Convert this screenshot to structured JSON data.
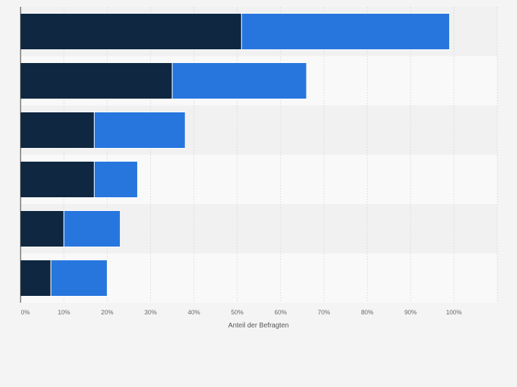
{
  "chart_data": {
    "type": "bar",
    "orientation": "horizontal",
    "stacked": true,
    "categories": [
      "",
      "",
      "",
      "",
      "",
      ""
    ],
    "series": [
      {
        "color": "#0f2740",
        "values": [
          51,
          35,
          17,
          17,
          10,
          7
        ]
      },
      {
        "color": "#2776dd",
        "values": [
          48,
          31,
          21,
          10,
          13,
          13
        ]
      }
    ],
    "xlabel": "Anteil der Befragten",
    "ylabel": "",
    "xlim": [
      0,
      110
    ],
    "x_ticks": [
      "0%",
      "10%",
      "20%",
      "30%",
      "40%",
      "50%",
      "60%",
      "70%",
      "80%",
      "90%",
      "100%"
    ],
    "grid": true,
    "legend": "none"
  }
}
